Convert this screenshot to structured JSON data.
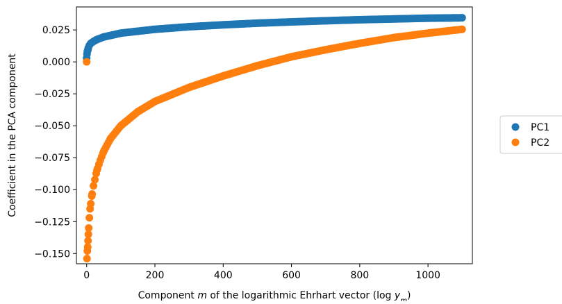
{
  "chart_data": {
    "type": "scatter",
    "title": "",
    "xlabel_prefix": "Component ",
    "xlabel_var": "m",
    "xlabel_middle": " of the logarithmic Ehrhart vector (log ",
    "xlabel_sub_base": "y",
    "xlabel_sub": "m",
    "xlabel_suffix": ")",
    "ylabel": "Coefficient in the PCA component",
    "xlim": [
      -30,
      1130
    ],
    "ylim": [
      -0.158,
      0.043
    ],
    "x_ticks": [
      0,
      200,
      400,
      600,
      800,
      1000
    ],
    "x_tick_labels": [
      "0",
      "200",
      "400",
      "600",
      "800",
      "1000"
    ],
    "y_ticks": [
      0.025,
      0.0,
      -0.025,
      -0.05,
      -0.075,
      -0.1,
      -0.125,
      -0.15
    ],
    "y_tick_labels": [
      "0.025",
      "0.000",
      "−0.025",
      "−0.050",
      "−0.075",
      "−0.100",
      "−0.125",
      "−0.150"
    ],
    "grid": false,
    "legend_position": "outside-right",
    "series": [
      {
        "name": "PC1",
        "color": "#1f77b4",
        "points": [
          [
            0,
            0.003
          ],
          [
            1,
            0.006
          ],
          [
            2,
            0.008
          ],
          [
            3,
            0.009
          ],
          [
            5,
            0.011
          ],
          [
            8,
            0.013
          ],
          [
            12,
            0.0145
          ],
          [
            20,
            0.016
          ],
          [
            30,
            0.0175
          ],
          [
            50,
            0.0195
          ],
          [
            75,
            0.021
          ],
          [
            100,
            0.0225
          ],
          [
            150,
            0.024
          ],
          [
            200,
            0.0255
          ],
          [
            300,
            0.0275
          ],
          [
            400,
            0.029
          ],
          [
            500,
            0.0303
          ],
          [
            600,
            0.0313
          ],
          [
            700,
            0.0322
          ],
          [
            800,
            0.033
          ],
          [
            900,
            0.0336
          ],
          [
            1000,
            0.0342
          ],
          [
            1100,
            0.0345
          ]
        ]
      },
      {
        "name": "PC2",
        "color": "#ff7f0e",
        "points": [
          [
            0,
            0.0
          ],
          [
            1,
            -0.154
          ],
          [
            2,
            -0.148
          ],
          [
            3,
            -0.145
          ],
          [
            4,
            -0.14
          ],
          [
            5,
            -0.135
          ],
          [
            6,
            -0.13
          ],
          [
            8,
            -0.122
          ],
          [
            10,
            -0.115
          ],
          [
            15,
            -0.105
          ],
          [
            20,
            -0.097
          ],
          [
            30,
            -0.085
          ],
          [
            40,
            -0.077
          ],
          [
            50,
            -0.07
          ],
          [
            70,
            -0.06
          ],
          [
            100,
            -0.05
          ],
          [
            150,
            -0.039
          ],
          [
            200,
            -0.031
          ],
          [
            300,
            -0.02
          ],
          [
            400,
            -0.011
          ],
          [
            500,
            -0.003
          ],
          [
            600,
            0.004
          ],
          [
            700,
            0.0095
          ],
          [
            800,
            0.0145
          ],
          [
            900,
            0.019
          ],
          [
            1000,
            0.0225
          ],
          [
            1100,
            0.0255
          ]
        ]
      }
    ]
  }
}
